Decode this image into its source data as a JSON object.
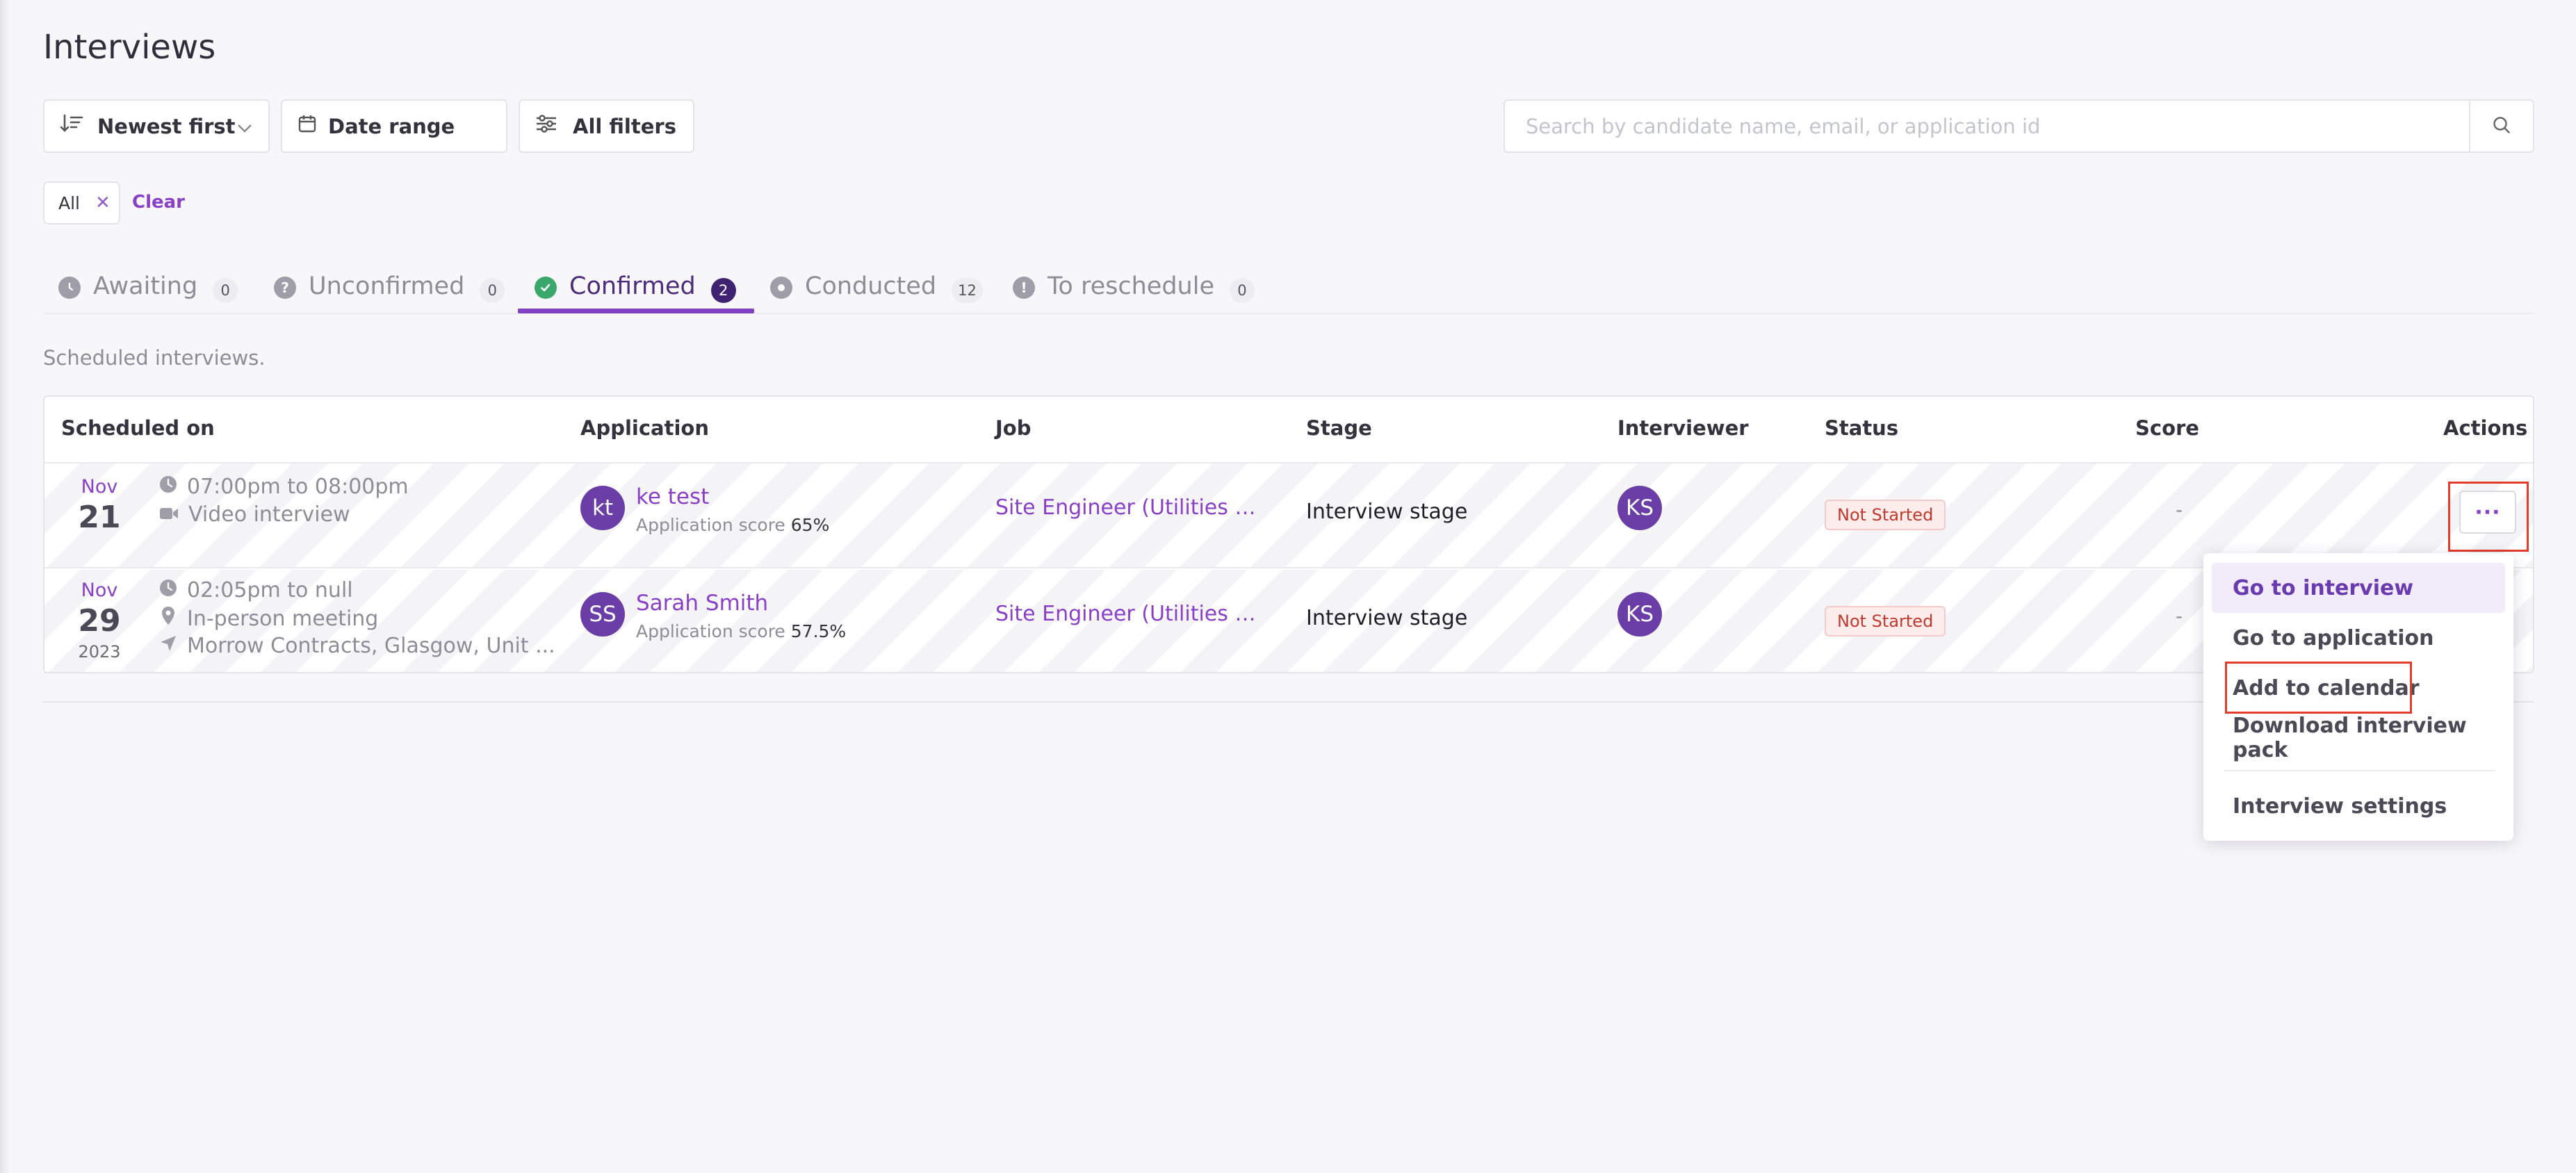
{
  "page": {
    "title": "Interviews"
  },
  "toolbar": {
    "sort_label": "Newest first",
    "date_label": "Date range",
    "filters_label": "All filters"
  },
  "search": {
    "placeholder": "Search by candidate name, email, or application id"
  },
  "chips": {
    "all_label": "All",
    "clear_label": "Clear"
  },
  "tabs": [
    {
      "label": "Awaiting",
      "count": "0",
      "icon": "clock-icon"
    },
    {
      "label": "Unconfirmed",
      "count": "0",
      "icon": "question-icon"
    },
    {
      "label": "Confirmed",
      "count": "2",
      "icon": "check-circle-icon",
      "active": true
    },
    {
      "label": "Conducted",
      "count": "12",
      "icon": "dot-circle-icon"
    },
    {
      "label": "To reschedule",
      "count": "0",
      "icon": "exclamation-icon"
    }
  ],
  "subtitle": "Scheduled interviews.",
  "table": {
    "headers": [
      "Scheduled on",
      "Application",
      "Job",
      "Stage",
      "Interviewer",
      "Status",
      "Score",
      "Actions"
    ],
    "rows": [
      {
        "month": "Nov",
        "day": "21",
        "year": "",
        "time": "07:00pm to 08:00pm",
        "type": "Video interview",
        "location": "",
        "initials": "kt",
        "name": "ke test",
        "score_label": "Application score",
        "score_value": "65%",
        "job": "Site Engineer (Utilities & G...",
        "stage": "Interview stage",
        "interviewer": "KS",
        "status": "Not Started",
        "score": "-"
      },
      {
        "month": "Nov",
        "day": "29",
        "year": "2023",
        "time": "02:05pm to null",
        "type": "In-person meeting",
        "location": "Morrow Contracts, Glasgow, Unit ...",
        "initials": "SS",
        "name": "Sarah Smith",
        "score_label": "Application score",
        "score_value": "57.5%",
        "job": "Site Engineer (Utilities & G...",
        "stage": "Interview stage",
        "interviewer": "KS",
        "status": "Not Started",
        "score": "-"
      }
    ]
  },
  "actions_button": "···",
  "menu": {
    "items": [
      "Go to interview",
      "Go to application",
      "Add to calendar",
      "Download interview pack",
      "Interview settings"
    ]
  },
  "colors": {
    "accent": "#8a3fc7",
    "tab_active_count": "#3f2271",
    "status_text": "#c0392b",
    "highlight": "#e23c2b"
  }
}
